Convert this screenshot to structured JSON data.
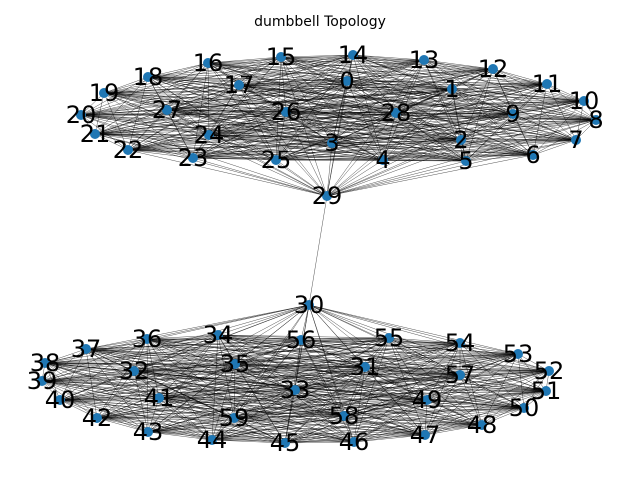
{
  "title": "dumbbell Topology",
  "node_color": "#1f77b4",
  "edge_color": "#000000",
  "graph": {
    "type": "dumbbell",
    "cliques": [
      {
        "nodes": [
          0,
          1,
          2,
          3,
          4,
          5,
          6,
          7,
          8,
          9,
          10,
          11,
          12,
          13,
          14,
          15,
          16,
          17,
          18,
          19,
          20,
          21,
          22,
          23,
          24,
          25,
          26,
          27,
          28,
          29
        ]
      },
      {
        "nodes": [
          30,
          31,
          32,
          33,
          34,
          35,
          36,
          37,
          38,
          39,
          40,
          41,
          42,
          43,
          44,
          45,
          46,
          47,
          48,
          49,
          50,
          51,
          52,
          53,
          54,
          55,
          56,
          57,
          58,
          59
        ]
      }
    ],
    "bridge": [
      29,
      30
    ],
    "labels": [
      "0",
      "1",
      "2",
      "3",
      "4",
      "5",
      "6",
      "7",
      "8",
      "9",
      "10",
      "11",
      "12",
      "13",
      "14",
      "15",
      "16",
      "17",
      "18",
      "19",
      "20",
      "21",
      "22",
      "23",
      "24",
      "25",
      "26",
      "27",
      "28",
      "29",
      "30",
      "31",
      "32",
      "33",
      "34",
      "35",
      "36",
      "37",
      "38",
      "39",
      "40",
      "41",
      "42",
      "43",
      "44",
      "45",
      "46",
      "47",
      "48",
      "49",
      "50",
      "51",
      "52",
      "53",
      "54",
      "55",
      "56",
      "57",
      "58",
      "59"
    ]
  }
}
